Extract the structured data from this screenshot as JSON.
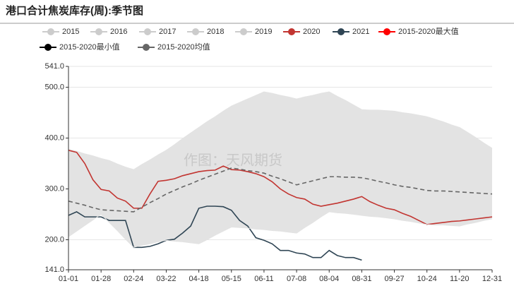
{
  "chart_data": {
    "type": "line",
    "title": "港口合计焦炭库存(周):季节图",
    "watermark": "作图：天风期货",
    "categories": [
      "01-01",
      null,
      null,
      null,
      "01-28",
      null,
      null,
      null,
      "02-24",
      null,
      null,
      null,
      "03-22",
      null,
      null,
      null,
      "04-18",
      null,
      null,
      null,
      "05-15",
      null,
      null,
      null,
      "06-11",
      null,
      null,
      null,
      "07-08",
      null,
      null,
      null,
      "08-04",
      null,
      null,
      null,
      "08-31",
      null,
      null,
      null,
      "09-27",
      null,
      null,
      null,
      "10-24",
      null,
      null,
      null,
      "11-20",
      null,
      null,
      null,
      "12-31"
    ],
    "ylim": [
      141,
      541
    ],
    "yticks": [
      {
        "value": 141,
        "label": "141.0"
      },
      {
        "value": 200,
        "label": "200.0"
      },
      {
        "value": 300,
        "label": "300.0"
      },
      {
        "value": 400,
        "label": "400.0"
      },
      {
        "value": 500,
        "label": "500.0"
      },
      {
        "value": 541,
        "label": "541.0"
      }
    ],
    "grid": true,
    "band_color": "#e3e3e3",
    "series": [
      {
        "name": "2015",
        "color": "#cccccc",
        "hidden": true
      },
      {
        "name": "2016",
        "color": "#cccccc",
        "hidden": true
      },
      {
        "name": "2017",
        "color": "#cccccc",
        "hidden": true
      },
      {
        "name": "2018",
        "color": "#cccccc",
        "hidden": true
      },
      {
        "name": "2019",
        "color": "#cccccc",
        "hidden": true
      },
      {
        "name": "2020",
        "color": "#c23531",
        "values": [
          376,
          372,
          350,
          318,
          299,
          296,
          282,
          276,
          262,
          262,
          290,
          315,
          317,
          320,
          326,
          330,
          334,
          336,
          337,
          345,
          338,
          337,
          334,
          330,
          324,
          314,
          300,
          290,
          283,
          280,
          270,
          266,
          269,
          272,
          276,
          280,
          285,
          275,
          268,
          262,
          259,
          252,
          246,
          238,
          230,
          232,
          234,
          236,
          237,
          239,
          241,
          243,
          245
        ]
      },
      {
        "name": "2021",
        "color": "#2f4554",
        "values": [
          248,
          255,
          245,
          245,
          245,
          238,
          238,
          238,
          185,
          185,
          187,
          192,
          199,
          201,
          213,
          227,
          262,
          266,
          266,
          265,
          258,
          238,
          227,
          204,
          199,
          192,
          179,
          179,
          174,
          172,
          165,
          165,
          179,
          169,
          165,
          165,
          160,
          null,
          null,
          null,
          null,
          null,
          null,
          null,
          null,
          null,
          null,
          null,
          null,
          null,
          null,
          null,
          null
        ]
      },
      {
        "name": "2015-2020最大值",
        "color": "#ff0000",
        "band": "upper",
        "values": [
          378,
          374,
          369,
          365,
          360,
          356,
          349,
          343,
          338,
          348,
          357,
          367,
          376,
          387,
          399,
          410,
          421,
          432,
          442,
          453,
          463,
          470,
          477,
          484,
          491,
          488,
          484,
          481,
          477,
          481,
          484,
          488,
          491,
          482,
          474,
          465,
          456,
          455,
          455,
          454,
          453,
          450,
          448,
          445,
          442,
          437,
          432,
          426,
          421,
          411,
          401,
          390,
          380
        ]
      },
      {
        "name": "2015-2020最小值",
        "color": "#000000",
        "band": "lower",
        "values": [
          206,
          217,
          228,
          239,
          250,
          234,
          218,
          201,
          185,
          189,
          192,
          196,
          199,
          197,
          196,
          194,
          192,
          200,
          209,
          217,
          225,
          224,
          223,
          221,
          220,
          218,
          217,
          215,
          213,
          224,
          234,
          245,
          255,
          253,
          252,
          250,
          248,
          246,
          245,
          243,
          241,
          238,
          236,
          233,
          230,
          229,
          229,
          228,
          227,
          231,
          234,
          238,
          241
        ]
      },
      {
        "name": "2015-2020均值",
        "color": "#666666",
        "dash": true,
        "values": [
          276,
          272,
          268,
          263,
          259,
          258,
          257,
          256,
          255,
          264,
          273,
          281,
          290,
          297,
          304,
          310,
          317,
          323,
          329,
          335,
          341,
          339,
          336,
          334,
          331,
          325,
          320,
          314,
          308,
          312,
          316,
          320,
          324,
          324,
          323,
          323,
          322,
          319,
          315,
          312,
          308,
          305,
          303,
          300,
          297,
          296,
          296,
          295,
          294,
          293,
          292,
          291,
          290
        ]
      }
    ]
  }
}
